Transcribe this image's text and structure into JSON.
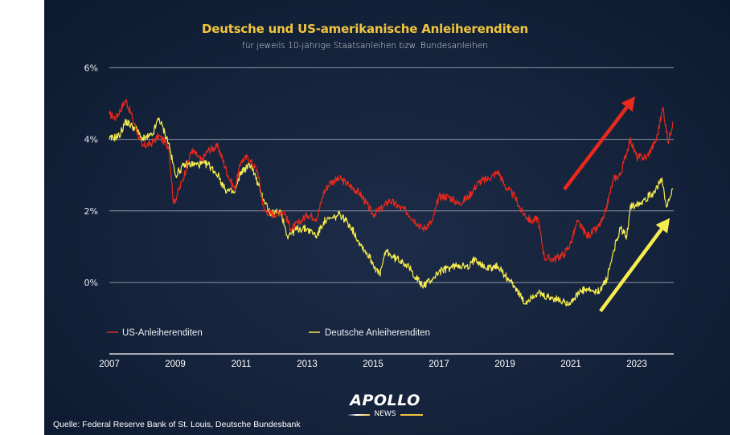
{
  "chart_data": {
    "type": "line",
    "title": "Deutsche und US-amerikanische Anleiherenditen",
    "subtitle": "für jeweils 10-jährige Staatsanleihen bzw. Bundesanleihen",
    "xlabel": "",
    "ylabel": "",
    "xlim": [
      2007,
      2024.1
    ],
    "ylim": [
      -2,
      6
    ],
    "x_ticks": [
      2007,
      2009,
      2011,
      2013,
      2015,
      2017,
      2019,
      2021,
      2023
    ],
    "x_tick_labels": [
      "2007",
      "2009",
      "2011",
      "2013",
      "2015",
      "2017",
      "2019",
      "2021",
      "2023"
    ],
    "y_ticks": [
      0,
      2,
      4,
      6
    ],
    "y_tick_labels": [
      "0%",
      "2%",
      "4%",
      "6%"
    ],
    "grid": true,
    "legend_position": "bottom-left",
    "series": [
      {
        "name": "US-Anleiherenditen",
        "color": "#e8291c",
        "x": [
          2007.0,
          2007.2,
          2007.5,
          2007.7,
          2008.0,
          2008.3,
          2008.5,
          2008.8,
          2008.95,
          2009.2,
          2009.5,
          2009.8,
          2010.0,
          2010.3,
          2010.6,
          2010.8,
          2011.0,
          2011.2,
          2011.5,
          2011.7,
          2012.0,
          2012.3,
          2012.5,
          2012.8,
          2013.0,
          2013.3,
          2013.5,
          2013.7,
          2014.0,
          2014.3,
          2014.6,
          2015.0,
          2015.3,
          2015.5,
          2015.8,
          2016.0,
          2016.5,
          2016.8,
          2017.0,
          2017.3,
          2017.6,
          2017.9,
          2018.2,
          2018.5,
          2018.8,
          2019.0,
          2019.3,
          2019.5,
          2019.8,
          2020.0,
          2020.2,
          2020.5,
          2020.8,
          2021.0,
          2021.2,
          2021.5,
          2021.8,
          2022.0,
          2022.3,
          2022.5,
          2022.8,
          2023.0,
          2023.3,
          2023.6,
          2023.8,
          2023.95,
          2024.1
        ],
        "values": [
          4.7,
          4.6,
          5.1,
          4.6,
          3.8,
          3.9,
          4.1,
          3.8,
          2.2,
          2.8,
          3.7,
          3.4,
          3.7,
          3.8,
          3.0,
          2.6,
          3.4,
          3.5,
          3.1,
          2.0,
          1.9,
          2.0,
          1.5,
          1.7,
          1.9,
          1.8,
          2.5,
          2.8,
          2.9,
          2.7,
          2.5,
          1.9,
          2.1,
          2.3,
          2.1,
          2.0,
          1.5,
          1.7,
          2.4,
          2.4,
          2.2,
          2.4,
          2.8,
          2.9,
          3.1,
          2.7,
          2.4,
          2.0,
          1.7,
          1.8,
          0.7,
          0.65,
          0.8,
          1.1,
          1.7,
          1.3,
          1.5,
          1.8,
          2.9,
          3.0,
          4.0,
          3.5,
          3.5,
          4.0,
          4.9,
          3.9,
          4.5
        ]
      },
      {
        "name": "Deutsche Anleiherenditen",
        "color": "#f7ec4f",
        "x": [
          2007.0,
          2007.3,
          2007.5,
          2007.8,
          2008.0,
          2008.3,
          2008.5,
          2008.8,
          2009.0,
          2009.3,
          2009.6,
          2010.0,
          2010.3,
          2010.5,
          2010.8,
          2011.0,
          2011.3,
          2011.6,
          2011.9,
          2012.2,
          2012.4,
          2012.7,
          2013.0,
          2013.3,
          2013.5,
          2013.8,
          2014.0,
          2014.3,
          2014.6,
          2014.9,
          2015.2,
          2015.4,
          2015.6,
          2015.9,
          2016.1,
          2016.5,
          2016.8,
          2017.0,
          2017.3,
          2017.6,
          2017.9,
          2018.1,
          2018.4,
          2018.8,
          2019.0,
          2019.3,
          2019.6,
          2019.8,
          2020.0,
          2020.2,
          2020.5,
          2020.8,
          2021.0,
          2021.3,
          2021.5,
          2021.8,
          2021.95,
          2022.1,
          2022.3,
          2022.5,
          2022.7,
          2022.8,
          2023.0,
          2023.2,
          2023.5,
          2023.75,
          2023.9,
          2024.1
        ],
        "values": [
          4.0,
          4.1,
          4.5,
          4.3,
          4.0,
          4.1,
          4.6,
          3.9,
          3.0,
          3.3,
          3.3,
          3.3,
          3.0,
          2.6,
          2.5,
          3.1,
          3.3,
          2.5,
          1.9,
          2.0,
          1.3,
          1.5,
          1.5,
          1.3,
          1.7,
          1.8,
          1.9,
          1.6,
          1.1,
          0.7,
          0.2,
          0.9,
          0.7,
          0.6,
          0.4,
          -0.1,
          0.1,
          0.3,
          0.4,
          0.5,
          0.4,
          0.7,
          0.4,
          0.45,
          0.2,
          -0.1,
          -0.6,
          -0.4,
          -0.3,
          -0.4,
          -0.45,
          -0.55,
          -0.55,
          -0.25,
          -0.2,
          -0.3,
          -0.1,
          0.1,
          0.9,
          1.5,
          1.3,
          2.1,
          2.2,
          2.3,
          2.5,
          2.9,
          2.1,
          2.6
        ]
      }
    ],
    "annotations": [
      {
        "type": "arrow",
        "color": "#e8291c",
        "from": [
          2020.8,
          2.6
        ],
        "to": [
          2022.95,
          5.2
        ],
        "meaning": "US yields rising"
      },
      {
        "type": "arrow",
        "color": "#f7ec4f",
        "from": [
          2021.9,
          -0.8
        ],
        "to": [
          2024.0,
          1.8
        ],
        "meaning": "German yields rising"
      }
    ]
  },
  "footer": {
    "source": "Quelle: Federal Reserve Bank of St. Louis, Deutsche Bundesbank",
    "logo_main": "APOLLO",
    "logo_sub": "NEWS"
  },
  "colors": {
    "background": "#14233b",
    "title": "#f2c53d",
    "us": "#e8291c",
    "de": "#f7ec4f",
    "grid": "#8d96a6",
    "logo_accent": "#f2c53d"
  }
}
